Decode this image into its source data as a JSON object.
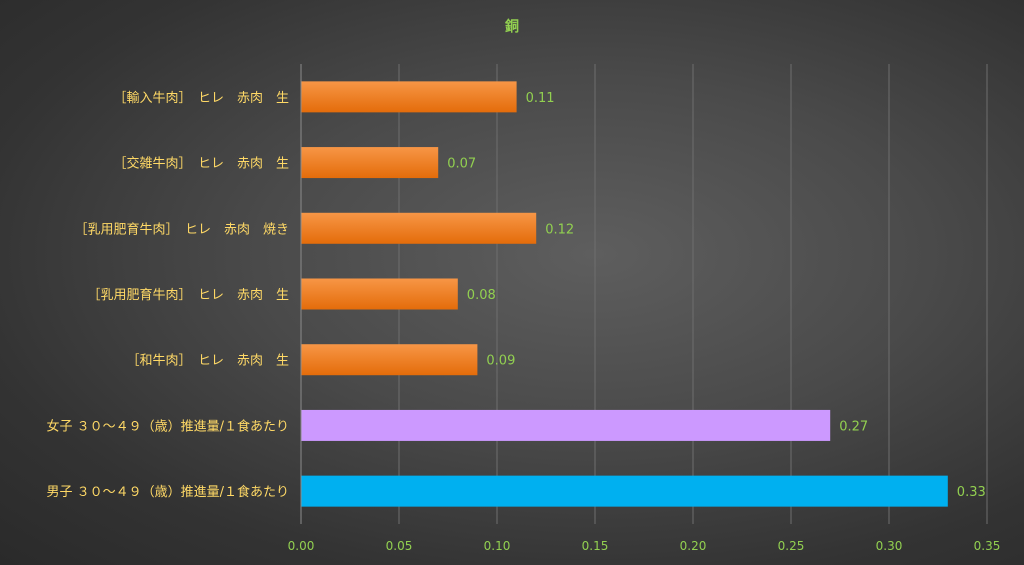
{
  "chart_data": {
    "type": "bar",
    "orientation": "horizontal",
    "title": "銅",
    "xlabel": "",
    "ylabel": "",
    "xlim": [
      0,
      0.35
    ],
    "x_ticks": [
      "0.00",
      "0.05",
      "0.10",
      "0.15",
      "0.20",
      "0.25",
      "0.30",
      "0.35"
    ],
    "grid": true,
    "legend": "none",
    "categories": [
      "［輸入牛肉］　ヒレ　赤肉　生",
      "［交雑牛肉］　ヒレ　赤肉　生",
      "［乳用肥育牛肉］　ヒレ　赤肉　焼き",
      "［乳用肥育牛肉］　ヒレ　赤肉　生",
      "［和牛肉］　ヒレ　赤肉　生",
      "女子 ３０～４９（歳）推進量/１食あたり",
      "男子 ３０～４９（歳）推進量/１食あたり"
    ],
    "values": [
      0.11,
      0.07,
      0.12,
      0.08,
      0.09,
      0.27,
      0.33
    ],
    "value_labels": [
      "0.11",
      "0.07",
      "0.12",
      "0.08",
      "0.09",
      "0.27",
      "0.33"
    ],
    "bar_colors": [
      "#f07f2a",
      "#f07f2a",
      "#f07f2a",
      "#f07f2a",
      "#f07f2a",
      "#cc99ff",
      "#00b0f0"
    ]
  }
}
